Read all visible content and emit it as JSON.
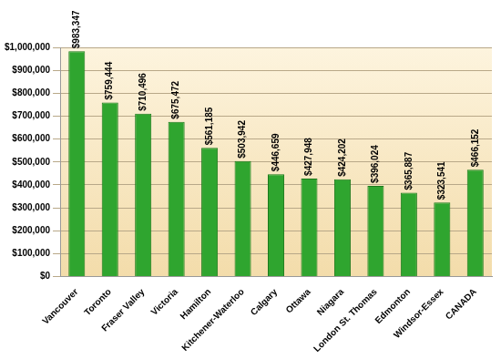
{
  "chart_data": {
    "type": "bar",
    "categories": [
      "Vancouver",
      "Toronto",
      "Fraser Valley",
      "Victoria",
      "Hamilton",
      "Kitchener-Waterloo",
      "Calgary",
      "Ottawa",
      "Niagara",
      "London St. Thomas",
      "Edmonton",
      "Windsor-Essex",
      "CANADA"
    ],
    "values": [
      983347,
      759444,
      710496,
      675472,
      561185,
      503942,
      446659,
      427948,
      424202,
      396024,
      365887,
      323541,
      466152
    ],
    "value_labels": [
      "$983,347",
      "$759,444",
      "$710,496",
      "$675,472",
      "$561,185",
      "$503,942",
      "$446,659",
      "$427,948",
      "$424,202",
      "$396,024",
      "$365,887",
      "$323,541",
      "$466,152"
    ],
    "color": "#2fa52f",
    "ylim": [
      0,
      1000000
    ],
    "yticks": [
      {
        "value": 0,
        "label": "$0"
      },
      {
        "value": 100000,
        "label": "$100,000"
      },
      {
        "value": 200000,
        "label": "$200,000"
      },
      {
        "value": 300000,
        "label": "$300,000"
      },
      {
        "value": 400000,
        "label": "$400,000"
      },
      {
        "value": 500000,
        "label": "$500,000"
      },
      {
        "value": 600000,
        "label": "$600,000"
      },
      {
        "value": 700000,
        "label": "$700,000"
      },
      {
        "value": 800000,
        "label": "$800,000"
      },
      {
        "value": 900000,
        "label": "$900,000"
      },
      {
        "value": 1000000,
        "label": "$1,000,000"
      }
    ],
    "grid": true,
    "data_labels": true
  }
}
